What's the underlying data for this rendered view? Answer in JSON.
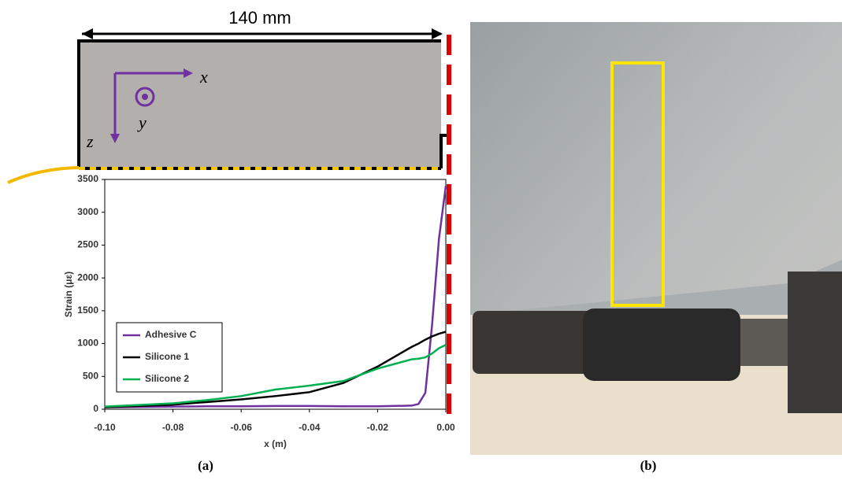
{
  "schematic": {
    "dimension_label": "140 mm",
    "axis_x": "x⃗",
    "axis_y": "y⃗",
    "axis_z": "z⃗"
  },
  "captions": {
    "a": "(a)",
    "b": "(b)"
  },
  "chart_data": {
    "type": "line",
    "x_label": "x (m)",
    "y_label": "Strain (με)",
    "x": [
      -0.1,
      -0.09,
      -0.08,
      -0.07,
      -0.06,
      -0.05,
      -0.04,
      -0.03,
      -0.02,
      -0.01,
      -0.008,
      -0.006,
      -0.004,
      -0.002,
      0
    ],
    "series": [
      {
        "name": "Adhesive C",
        "color": "#7030a0",
        "values": [
          30,
          35,
          40,
          45,
          45,
          50,
          50,
          45,
          45,
          55,
          80,
          250,
          1300,
          2600,
          3400
        ]
      },
      {
        "name": "Silicone 1",
        "color": "#000000",
        "values": [
          30,
          50,
          70,
          110,
          150,
          200,
          260,
          400,
          650,
          950,
          1000,
          1060,
          1110,
          1150,
          1180
        ]
      },
      {
        "name": "Silicone 2",
        "color": "#00b050",
        "values": [
          40,
          65,
          90,
          140,
          200,
          300,
          360,
          430,
          620,
          760,
          770,
          790,
          850,
          930,
          980
        ]
      }
    ],
    "xlim": [
      -0.1,
      0
    ],
    "ylim": [
      0,
      3500
    ],
    "xticks": [
      {
        "value": -0.1,
        "label": "-0.10"
      },
      {
        "value": -0.08,
        "label": "-0.08"
      },
      {
        "value": -0.06,
        "label": "-0.06"
      },
      {
        "value": -0.04,
        "label": "-0.04"
      },
      {
        "value": -0.02,
        "label": "-0.02"
      },
      {
        "value": 0,
        "label": "0.00"
      }
    ],
    "yticks": [
      0,
      500,
      1000,
      1500,
      2000,
      2500,
      3000,
      3500
    ],
    "legend": "lower left",
    "grid": false
  }
}
